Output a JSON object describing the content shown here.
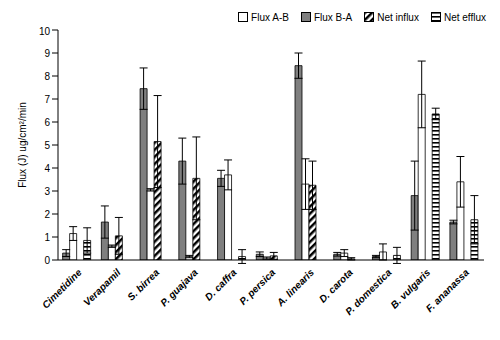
{
  "chart_data": {
    "type": "bar",
    "y_label": "Flux (J) ug/cm²/min",
    "categories": [
      "Cimetidine",
      "Verapamil",
      "S. birrea",
      "P. guajava",
      "D. caffra",
      "P. persica",
      "A. linearis",
      "D. carota",
      "P. domestica",
      "B. vulgaris",
      "F. ananassa"
    ],
    "series": [
      {
        "name": "Flux A-B",
        "color": "#ffffff",
        "values": [
          1.15,
          0.6,
          3.05,
          0.15,
          3.7,
          0.08,
          3.3,
          0.3,
          0.35,
          7.2,
          3.4
        ],
        "errors": [
          0.3,
          0.05,
          0.05,
          0.05,
          0.65,
          0.05,
          1.1,
          0.15,
          0.35,
          1.45,
          1.1
        ]
      },
      {
        "name": "Flux B-A",
        "color": "#7f7f7f",
        "values": [
          0.3,
          1.65,
          7.45,
          4.3,
          3.55,
          0.25,
          8.45,
          0.25,
          0.15,
          2.8,
          1.65
        ],
        "errors": [
          0.15,
          0.7,
          0.9,
          1.0,
          0.35,
          0.1,
          0.55,
          0.08,
          0.05,
          1.5,
          0.08
        ]
      },
      {
        "name": "Net influx",
        "color": "#000000",
        "values": [
          null,
          1.05,
          5.15,
          3.55,
          null,
          0.18,
          3.25,
          0.05,
          null,
          null,
          null
        ],
        "errors": [
          null,
          0.8,
          2.0,
          1.8,
          null,
          0.15,
          1.05,
          0.05,
          null,
          null,
          null
        ]
      },
      {
        "name": "Net efflux",
        "color": "#000000",
        "values": [
          0.85,
          null,
          null,
          null,
          0.15,
          null,
          null,
          null,
          0.2,
          6.35,
          1.75
        ],
        "errors": [
          0.55,
          null,
          null,
          null,
          0.3,
          null,
          null,
          null,
          0.35,
          0.25,
          1.05
        ]
      }
    ],
    "ylim": [
      0,
      10
    ],
    "yticks": [
      0,
      1,
      2,
      3,
      4,
      5,
      6,
      7,
      8,
      9,
      10
    ],
    "grid": false
  }
}
